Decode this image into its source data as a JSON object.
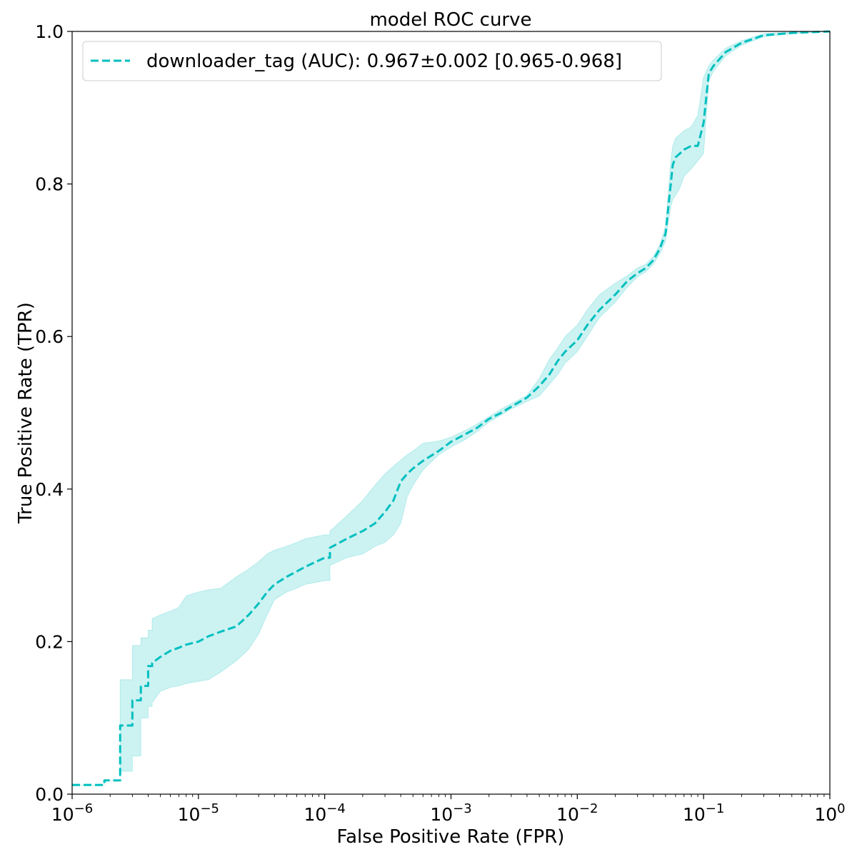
{
  "chart_data": {
    "type": "line",
    "title": "model ROC curve",
    "xlabel": "False Positive Rate (FPR)",
    "ylabel": "True Positive Rate (TPR)",
    "x_scale": "log",
    "xlim": [
      1e-06,
      1
    ],
    "ylim": [
      0,
      1
    ],
    "grid": false,
    "legend_position": "upper-left",
    "x_ticks": [
      {
        "value": 1e-06,
        "base": "10",
        "exp": "−6"
      },
      {
        "value": 1e-05,
        "base": "10",
        "exp": "−5"
      },
      {
        "value": 0.0001,
        "base": "10",
        "exp": "−4"
      },
      {
        "value": 0.001,
        "base": "10",
        "exp": "−3"
      },
      {
        "value": 0.01,
        "base": "10",
        "exp": "−2"
      },
      {
        "value": 0.1,
        "base": "10",
        "exp": "−1"
      },
      {
        "value": 1,
        "base": "10",
        "exp": "0"
      }
    ],
    "y_ticks": [
      {
        "value": 0.0,
        "label": "0.0"
      },
      {
        "value": 0.2,
        "label": "0.2"
      },
      {
        "value": 0.4,
        "label": "0.4"
      },
      {
        "value": 0.6,
        "label": "0.6"
      },
      {
        "value": 0.8,
        "label": "0.8"
      },
      {
        "value": 1.0,
        "label": "1.0"
      }
    ],
    "series": [
      {
        "name": "downloader_tag (AUC): 0.967±0.002 [0.965-0.968]",
        "color": "#00bfbf",
        "line_style": "dashed",
        "x": [
          1e-06,
          1.8e-06,
          1.8e-06,
          2.4e-06,
          2.4e-06,
          3e-06,
          3e-06,
          3.5e-06,
          3.5e-06,
          4e-06,
          4e-06,
          4.3e-06,
          4.3e-06,
          5e-06,
          6e-06,
          7e-06,
          8e-06,
          1e-05,
          1.2e-05,
          1.5e-05,
          2e-05,
          2.5e-05,
          3e-05,
          3.5e-05,
          4e-05,
          5e-05,
          6e-05,
          7e-05,
          0.0001,
          0.00011,
          0.00011,
          0.00015,
          0.0002,
          0.00025,
          0.0003,
          0.00035,
          0.0004,
          0.00045,
          0.0005,
          0.0006,
          0.0008,
          0.001,
          0.0013,
          0.0016,
          0.002,
          0.0025,
          0.003,
          0.004,
          0.005,
          0.006,
          0.007,
          0.008,
          0.01,
          0.012,
          0.015,
          0.02,
          0.025,
          0.03,
          0.035,
          0.04,
          0.045,
          0.05,
          0.055,
          0.057,
          0.06,
          0.065,
          0.07,
          0.08,
          0.09,
          0.1,
          0.1,
          0.11,
          0.12,
          0.15,
          0.2,
          0.3,
          0.5,
          1
        ],
        "y": [
          0.012,
          0.012,
          0.018,
          0.018,
          0.09,
          0.09,
          0.123,
          0.123,
          0.142,
          0.142,
          0.168,
          0.168,
          0.172,
          0.18,
          0.188,
          0.192,
          0.196,
          0.2,
          0.207,
          0.213,
          0.22,
          0.235,
          0.25,
          0.265,
          0.275,
          0.285,
          0.292,
          0.298,
          0.31,
          0.31,
          0.323,
          0.335,
          0.345,
          0.355,
          0.37,
          0.385,
          0.41,
          0.42,
          0.427,
          0.437,
          0.45,
          0.462,
          0.472,
          0.48,
          0.492,
          0.5,
          0.508,
          0.52,
          0.535,
          0.55,
          0.568,
          0.58,
          0.595,
          0.615,
          0.635,
          0.655,
          0.673,
          0.683,
          0.69,
          0.7,
          0.715,
          0.735,
          0.8,
          0.825,
          0.835,
          0.84,
          0.845,
          0.85,
          0.85,
          0.88,
          0.88,
          0.945,
          0.955,
          0.973,
          0.985,
          0.995,
          0.998,
          1.0
        ],
        "band_lower": [
          0.012,
          0.012,
          0.018,
          0.018,
          0.03,
          0.03,
          0.05,
          0.05,
          0.1,
          0.1,
          0.115,
          0.115,
          0.12,
          0.135,
          0.14,
          0.142,
          0.145,
          0.148,
          0.15,
          0.16,
          0.175,
          0.19,
          0.21,
          0.235,
          0.255,
          0.265,
          0.27,
          0.275,
          0.28,
          0.28,
          0.3,
          0.31,
          0.315,
          0.325,
          0.33,
          0.34,
          0.355,
          0.39,
          0.405,
          0.425,
          0.445,
          0.455,
          0.465,
          0.475,
          0.488,
          0.497,
          0.505,
          0.515,
          0.522,
          0.537,
          0.55,
          0.565,
          0.58,
          0.6,
          0.625,
          0.645,
          0.665,
          0.678,
          0.685,
          0.695,
          0.708,
          0.725,
          0.77,
          0.78,
          0.785,
          0.795,
          0.81,
          0.82,
          0.83,
          0.84,
          0.84,
          0.935,
          0.948,
          0.968,
          0.982,
          0.993,
          0.997,
          1.0
        ],
        "band_upper": [
          0.012,
          0.012,
          0.018,
          0.018,
          0.15,
          0.15,
          0.195,
          0.195,
          0.205,
          0.205,
          0.215,
          0.215,
          0.23,
          0.235,
          0.24,
          0.245,
          0.26,
          0.265,
          0.268,
          0.27,
          0.285,
          0.295,
          0.305,
          0.315,
          0.32,
          0.325,
          0.33,
          0.335,
          0.34,
          0.34,
          0.345,
          0.365,
          0.385,
          0.405,
          0.42,
          0.43,
          0.438,
          0.445,
          0.45,
          0.46,
          0.463,
          0.468,
          0.477,
          0.485,
          0.495,
          0.505,
          0.512,
          0.523,
          0.545,
          0.57,
          0.585,
          0.6,
          0.615,
          0.635,
          0.655,
          0.67,
          0.68,
          0.69,
          0.695,
          0.705,
          0.72,
          0.745,
          0.83,
          0.85,
          0.86,
          0.865,
          0.87,
          0.875,
          0.89,
          0.94,
          0.94,
          0.955,
          0.963,
          0.978,
          0.988,
          0.997,
          0.999,
          1.0
        ]
      }
    ]
  }
}
